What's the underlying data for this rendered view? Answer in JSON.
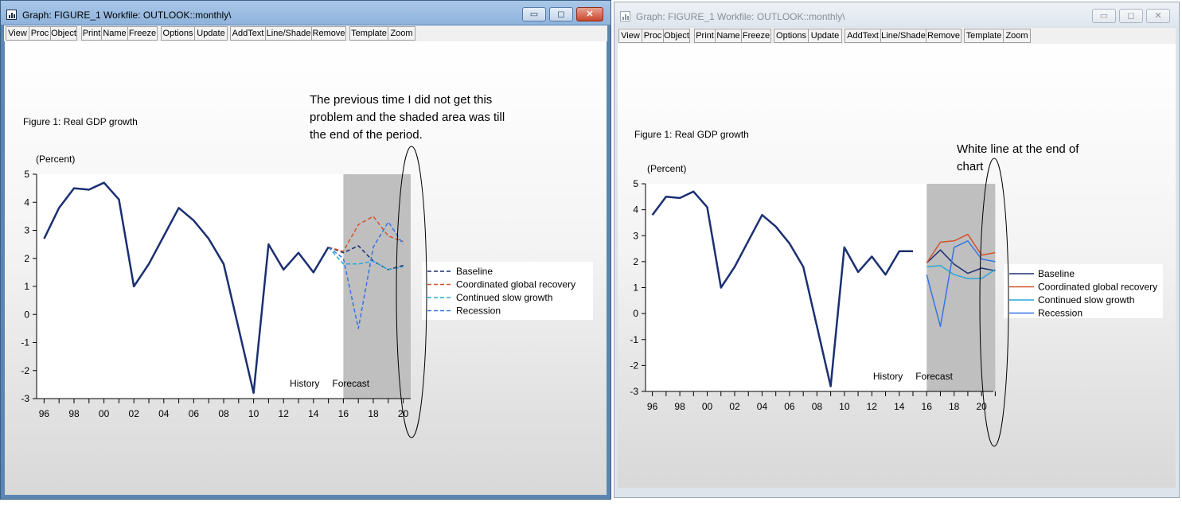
{
  "left_window": {
    "title": "Graph: FIGURE_1   Workfile: OUTLOOK::monthly\\",
    "toolbar": [
      "View",
      "Proc",
      "Object",
      "Print",
      "Name",
      "Freeze",
      "Options",
      "Update",
      "AddText",
      "Line/Shade",
      "Remove",
      "Template",
      "Zoom"
    ],
    "caption_buttons": {
      "minimize": "▭",
      "restore": "◻",
      "close": "✕"
    }
  },
  "right_window": {
    "title": "Graph: FIGURE_1   Workfile: OUTLOOK::monthly\\",
    "toolbar": [
      "View",
      "Proc",
      "Object",
      "Print",
      "Name",
      "Freeze",
      "Options",
      "Update",
      "AddText",
      "Line/Shade",
      "Remove",
      "Template",
      "Zoom"
    ],
    "caption_buttons": {
      "minimize": "▭",
      "restore": "◻",
      "close": "✕"
    }
  },
  "annotations": {
    "left": [
      "The previous time I did not get this",
      "problem and the shaded area was till",
      "the end of the period."
    ],
    "right": [
      "White line at the end of",
      "chart"
    ]
  },
  "colors": {
    "baseline": "#1b2f72",
    "history": "#1b2f72",
    "recovery": "#d2532c",
    "slow": "#2aa7d6",
    "recession": "#3674e4",
    "shade": "#bfbfbf"
  },
  "chart_data": [
    {
      "type": "line",
      "title": "Figure 1: Real GDP growth",
      "ylabel": "(Percent)",
      "ylim": [
        -3,
        5
      ],
      "yticks": [
        "5",
        "4",
        "3",
        "2",
        "1",
        "0",
        "-1",
        "-2",
        "-3"
      ],
      "xlim": [
        1995.5,
        2020.5
      ],
      "xtick_labels": [
        "96",
        "98",
        "00",
        "02",
        "04",
        "06",
        "08",
        "10",
        "12",
        "14",
        "16",
        "18",
        "20"
      ],
      "shade": {
        "from": 2016,
        "to": 2020.5
      },
      "region_labels": {
        "history": "History",
        "forecast": "Forecast"
      },
      "line_style": "dashed",
      "history": {
        "x": [
          1996,
          1997,
          1998,
          1999,
          2000,
          2001,
          2002,
          2003,
          2004,
          2005,
          2006,
          2007,
          2008,
          2009,
          2010,
          2011,
          2012,
          2013,
          2014,
          2015
        ],
        "y": [
          2.7,
          3.8,
          4.5,
          4.45,
          4.7,
          4.1,
          1.0,
          1.8,
          2.8,
          3.8,
          3.35,
          2.7,
          1.8,
          -0.5,
          -2.8,
          2.5,
          1.6,
          2.2,
          1.5,
          2.4
        ]
      },
      "series": [
        {
          "name": "Baseline",
          "x": [
            2015,
            2016,
            2017,
            2018,
            2019,
            2020
          ],
          "y": [
            2.4,
            2.2,
            2.45,
            1.9,
            1.6,
            1.75
          ]
        },
        {
          "name": "Coordinated global recovery",
          "x": [
            2015,
            2016,
            2017,
            2018,
            2019,
            2020
          ],
          "y": [
            2.4,
            2.25,
            3.2,
            3.5,
            2.8,
            2.6
          ]
        },
        {
          "name": "Continued slow growth",
          "x": [
            2015,
            2016,
            2017,
            2018,
            2019,
            2020
          ],
          "y": [
            2.4,
            1.8,
            1.8,
            1.9,
            1.6,
            1.7
          ]
        },
        {
          "name": "Recession",
          "x": [
            2015,
            2016,
            2017,
            2018,
            2019,
            2020
          ],
          "y": [
            2.4,
            2.0,
            -0.5,
            2.4,
            3.3,
            2.5
          ]
        }
      ],
      "legend": [
        "Baseline",
        "Coordinated global recovery",
        "Continued slow growth",
        "Recession"
      ]
    },
    {
      "type": "line",
      "title": "Figure 1: Real GDP growth",
      "ylabel": "(Percent)",
      "ylim": [
        -3,
        5
      ],
      "yticks": [
        "5",
        "4",
        "3",
        "2",
        "1",
        "0",
        "-1",
        "-2",
        "-3"
      ],
      "xlim": [
        1995.5,
        2021.5
      ],
      "xtick_labels": [
        "96",
        "98",
        "00",
        "02",
        "04",
        "06",
        "08",
        "10",
        "12",
        "14",
        "16",
        "18",
        "20"
      ],
      "shade": {
        "from": 2016,
        "to": 2021
      },
      "region_labels": {
        "history": "History",
        "forecast": "Forecast"
      },
      "line_style": "solid",
      "history": {
        "x": [
          1996,
          1997,
          1998,
          1999,
          2000,
          2001,
          2002,
          2003,
          2004,
          2005,
          2006,
          2007,
          2008,
          2009,
          2010,
          2011,
          2012,
          2013,
          2014,
          2015
        ],
        "y": [
          3.8,
          4.5,
          4.45,
          4.7,
          4.1,
          1.0,
          1.8,
          2.8,
          3.8,
          3.35,
          2.7,
          1.8,
          -0.5,
          -2.8,
          2.55,
          1.6,
          2.2,
          1.5,
          2.4,
          2.4
        ]
      },
      "series": [
        {
          "name": "Baseline",
          "x": [
            2016,
            2017,
            2018,
            2019,
            2020,
            2021
          ],
          "y": [
            1.95,
            2.45,
            1.9,
            1.55,
            1.75,
            1.65
          ]
        },
        {
          "name": "Coordinated global recovery",
          "x": [
            2016,
            2017,
            2018,
            2019,
            2020,
            2021
          ],
          "y": [
            1.95,
            2.75,
            2.8,
            3.05,
            2.25,
            2.35
          ]
        },
        {
          "name": "Continued slow growth",
          "x": [
            2016,
            2017,
            2018,
            2019,
            2020,
            2021
          ],
          "y": [
            1.8,
            1.85,
            1.5,
            1.35,
            1.35,
            1.7
          ]
        },
        {
          "name": "Recession",
          "x": [
            2016,
            2017,
            2018,
            2019,
            2020,
            2021
          ],
          "y": [
            1.5,
            -0.5,
            2.55,
            2.8,
            2.1,
            2.0
          ]
        }
      ],
      "legend": [
        "Baseline",
        "Coordinated global recovery",
        "Continued slow growth",
        "Recession"
      ]
    }
  ]
}
